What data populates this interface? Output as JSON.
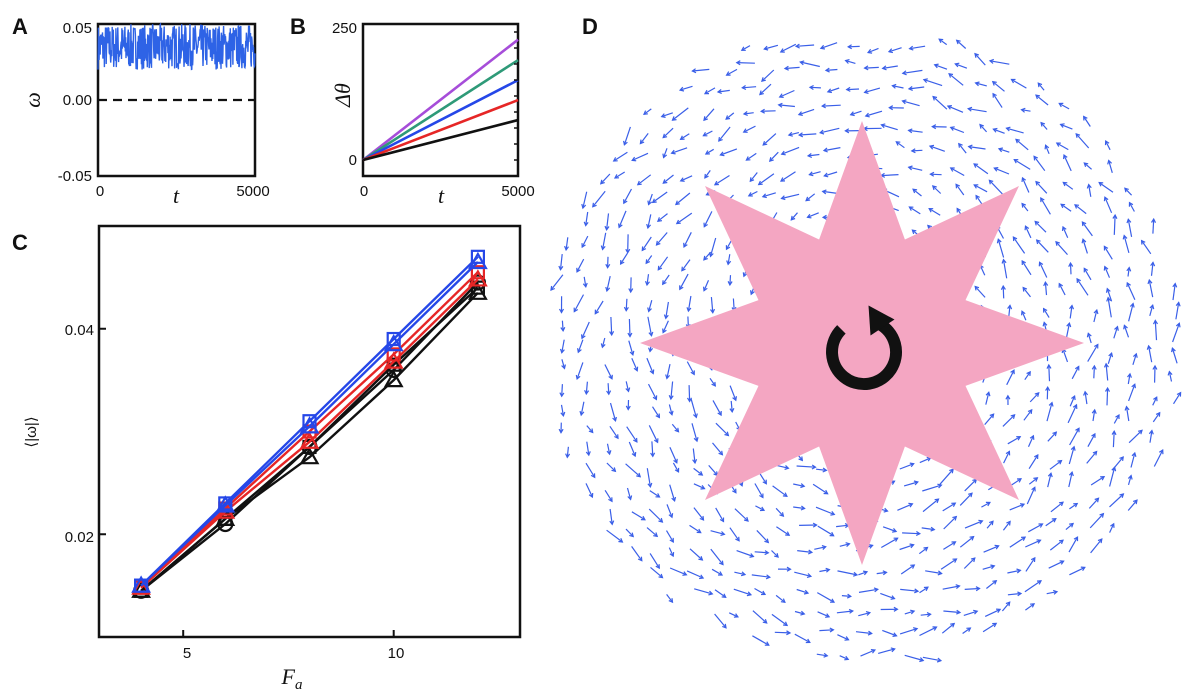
{
  "panels": {
    "a": "A",
    "b": "B",
    "c": "C",
    "d": "D"
  },
  "colors": {
    "blue_noise": "#2e63e6",
    "purple": "#a64dd9",
    "green": "#2e9a78",
    "blue": "#2547e8",
    "red": "#e62626",
    "black": "#111111",
    "star_fill": "#f4a6c2",
    "arrow": "#3a5fe8"
  },
  "chart_data": [
    {
      "id": "A",
      "type": "line",
      "xlabel": "t",
      "ylabel": "ω",
      "xlim": [
        0,
        5000
      ],
      "ylim": [
        -0.05,
        0.05
      ],
      "xticks": [
        "0",
        "5000"
      ],
      "yticks": [
        "0.05",
        "0.00",
        "-0.05"
      ],
      "series": [
        {
          "mean": 0.035,
          "min": 0.02,
          "max": 0.05
        }
      ],
      "reference_line": {
        "y": 0.0,
        "style": "dashed"
      }
    },
    {
      "id": "B",
      "type": "line",
      "xlabel": "t",
      "ylabel": "Δθ",
      "xlim": [
        0,
        5000
      ],
      "ylim": [
        0,
        250
      ],
      "xticks": [
        "0",
        "5000"
      ],
      "yticks": [
        "250",
        "0"
      ],
      "series": [
        {
          "color": "purple",
          "x": [
            0,
            5000
          ],
          "values": [
            0,
            235
          ]
        },
        {
          "color": "green",
          "x": [
            0,
            5000
          ],
          "values": [
            0,
            195
          ]
        },
        {
          "color": "blue",
          "x": [
            0,
            5000
          ],
          "values": [
            0,
            156
          ]
        },
        {
          "color": "red",
          "x": [
            0,
            5000
          ],
          "values": [
            0,
            117
          ]
        },
        {
          "color": "black",
          "x": [
            0,
            5000
          ],
          "values": [
            0,
            78
          ]
        }
      ]
    },
    {
      "id": "C",
      "type": "line",
      "xlabel": "F_a",
      "ylabel": "⟨|ω|⟩",
      "xlim": [
        3,
        13
      ],
      "ylim": [
        0.01,
        0.05
      ],
      "xticks": [
        "5",
        "10"
      ],
      "yticks": [
        "0.04",
        "0.02"
      ],
      "x": [
        4,
        6,
        8,
        10,
        12
      ],
      "series": [
        {
          "color": "black",
          "marker": "square",
          "values": [
            0.0145,
            0.0215,
            0.0285,
            0.0365,
            0.044
          ]
        },
        {
          "color": "black",
          "marker": "triangle",
          "values": [
            0.0145,
            0.0215,
            0.0275,
            0.035,
            0.0435
          ]
        },
        {
          "color": "black",
          "marker": "circle",
          "values": [
            0.0145,
            0.021,
            0.0285,
            0.036,
            0.0445
          ]
        },
        {
          "color": "red",
          "marker": "square",
          "values": [
            0.0148,
            0.0225,
            0.03,
            0.0375,
            0.0455
          ]
        },
        {
          "color": "red",
          "marker": "triangle",
          "values": [
            0.0148,
            0.0222,
            0.029,
            0.0368,
            0.0448
          ]
        },
        {
          "color": "blue",
          "marker": "square",
          "values": [
            0.015,
            0.023,
            0.031,
            0.039,
            0.047
          ]
        },
        {
          "color": "blue",
          "marker": "triangle",
          "values": [
            0.015,
            0.0228,
            0.0305,
            0.0385,
            0.0465
          ]
        }
      ]
    }
  ],
  "vector_field": {
    "sense": "counterclockwise",
    "star_points": 8
  }
}
